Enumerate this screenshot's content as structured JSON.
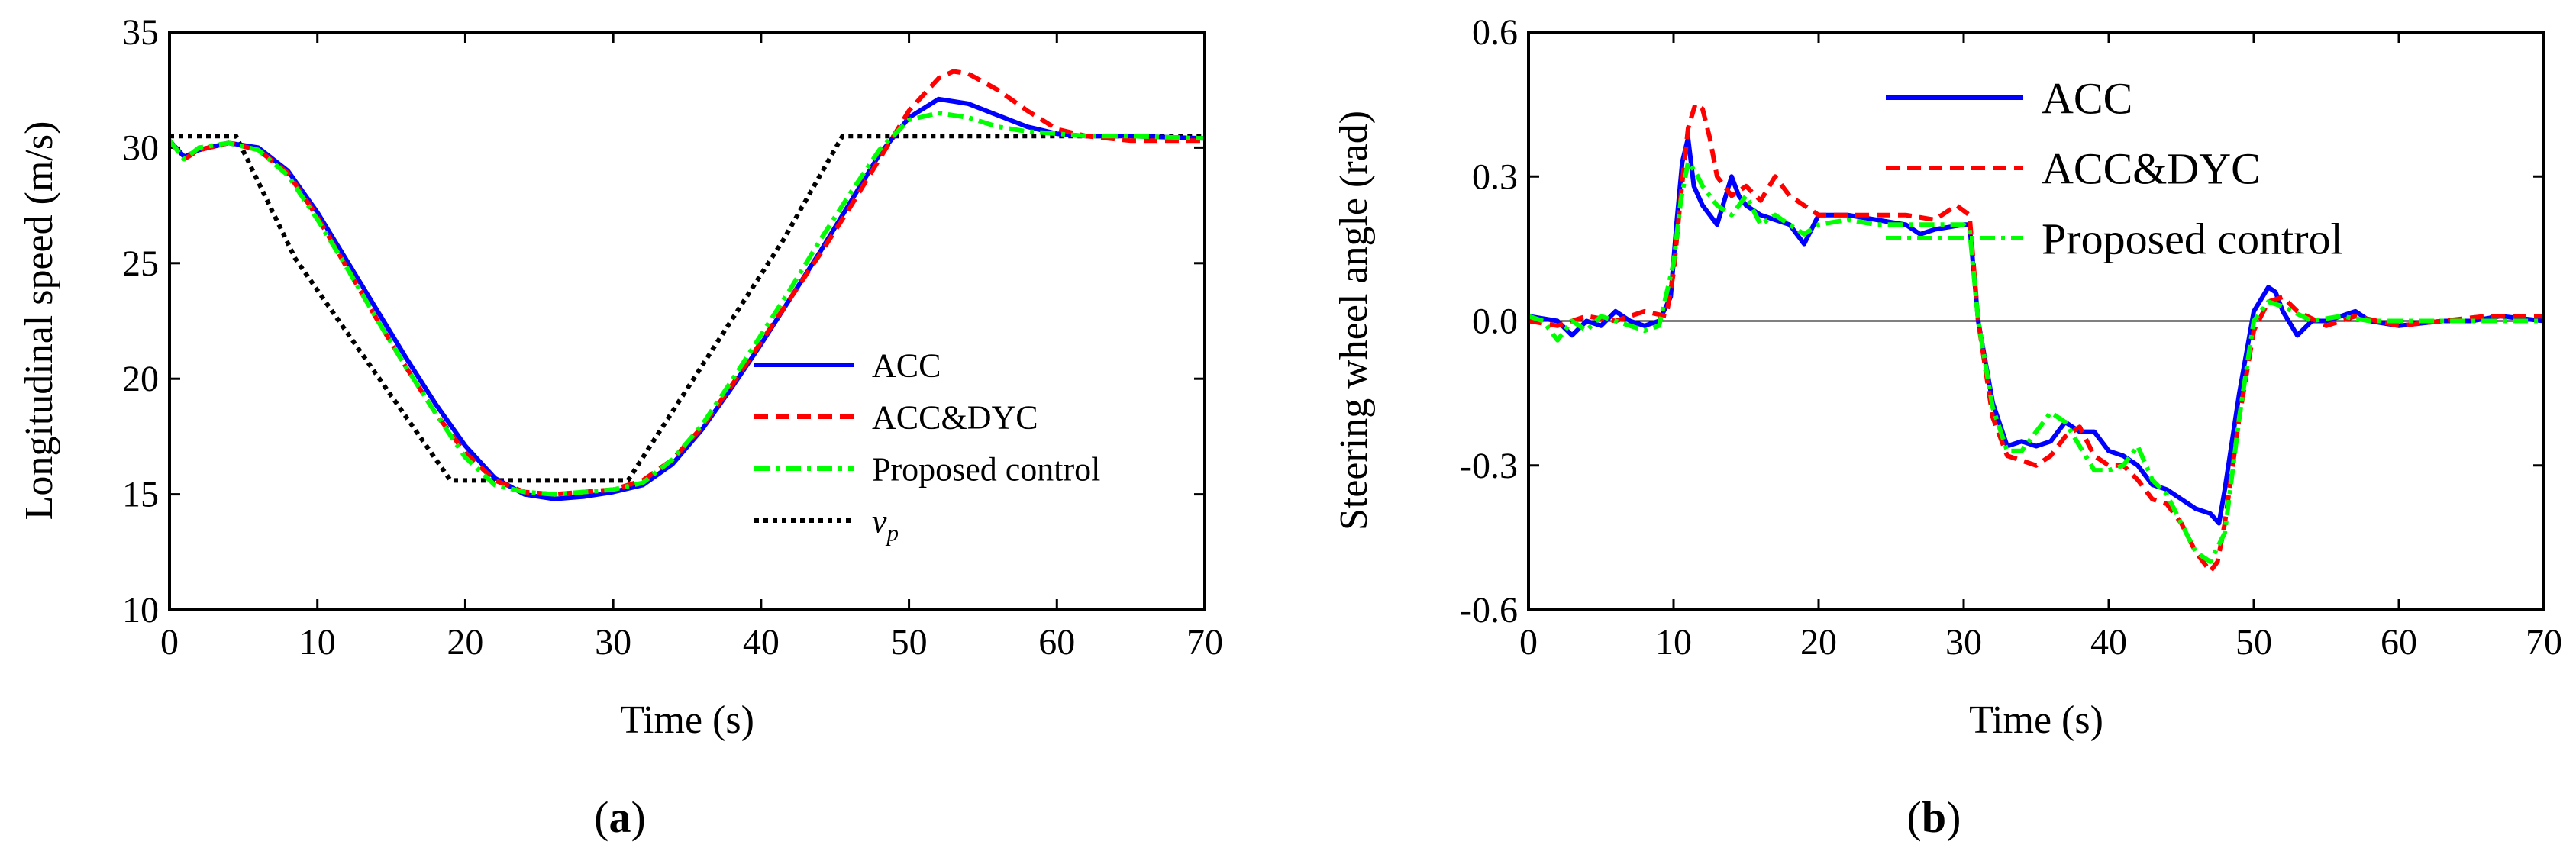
{
  "figure": {
    "panel_labels": [
      "(a)",
      "(b)"
    ]
  },
  "colors": {
    "ACC": "#0000ff",
    "ACC&DYC": "#ff0000",
    "Proposed control": "#00ff00",
    "v_p": "#000000"
  },
  "chart_data": [
    {
      "type": "line",
      "panel": "(a)",
      "xlabel": "Time (s)",
      "ylabel": "Longitudinal speed (m/s)",
      "xlim": [
        0,
        70
      ],
      "ylim": [
        10,
        35
      ],
      "xticks": [
        0,
        10,
        20,
        30,
        40,
        50,
        60,
        70
      ],
      "yticks": [
        10,
        15,
        20,
        25,
        30,
        35
      ],
      "xtick_labels": [
        "0",
        "10",
        "20",
        "30",
        "40",
        "50",
        "60",
        "70"
      ],
      "ytick_labels": [
        "10",
        "15",
        "20",
        "25",
        "30",
        "35"
      ],
      "legend_position": "lower-right",
      "series": [
        {
          "name": "ACC",
          "style": "solid",
          "x": [
            0,
            1,
            2,
            4,
            6,
            8,
            10,
            12,
            14,
            16,
            18,
            20,
            22,
            24,
            26,
            28,
            30,
            32,
            34,
            36,
            38,
            40,
            42,
            44,
            46,
            48,
            50,
            52,
            54,
            56,
            58,
            60,
            62,
            65,
            70
          ],
          "y": [
            30.3,
            29.6,
            29.9,
            30.2,
            30.0,
            29.0,
            27.2,
            25.1,
            23.0,
            20.9,
            18.9,
            17.1,
            15.7,
            15.0,
            14.8,
            14.9,
            15.1,
            15.4,
            16.3,
            17.8,
            19.6,
            21.5,
            23.5,
            25.5,
            27.6,
            29.7,
            31.3,
            32.1,
            31.9,
            31.4,
            30.9,
            30.6,
            30.5,
            30.5,
            30.4
          ]
        },
        {
          "name": "ACC&DYC",
          "style": "dashed",
          "x": [
            0,
            1,
            2,
            4,
            6,
            8,
            10,
            12,
            14,
            16,
            18,
            20,
            22,
            24,
            26,
            28,
            30,
            32,
            34,
            36,
            38,
            40,
            42,
            44,
            46,
            48,
            50,
            52,
            53,
            54,
            56,
            58,
            60,
            62,
            65,
            70
          ],
          "y": [
            30.3,
            29.5,
            29.9,
            30.2,
            29.9,
            28.9,
            27.0,
            24.8,
            22.6,
            20.5,
            18.5,
            16.8,
            15.6,
            15.1,
            15.0,
            15.1,
            15.2,
            15.6,
            16.5,
            17.9,
            19.7,
            21.6,
            23.5,
            25.4,
            27.4,
            29.5,
            31.6,
            33.0,
            33.3,
            33.2,
            32.5,
            31.6,
            30.8,
            30.5,
            30.3,
            30.3
          ]
        },
        {
          "name": "Proposed control",
          "style": "dashdot",
          "x": [
            0,
            1,
            2,
            4,
            6,
            8,
            10,
            12,
            14,
            16,
            18,
            20,
            22,
            24,
            26,
            28,
            30,
            32,
            34,
            36,
            38,
            40,
            42,
            44,
            46,
            48,
            50,
            52,
            54,
            56,
            58,
            60,
            62,
            65,
            70
          ],
          "y": [
            30.3,
            29.5,
            30.0,
            30.2,
            29.9,
            28.8,
            26.9,
            24.8,
            22.6,
            20.5,
            18.5,
            16.6,
            15.4,
            15.1,
            15.0,
            15.1,
            15.2,
            15.5,
            16.5,
            18.0,
            19.9,
            21.9,
            23.9,
            26.0,
            28.0,
            29.9,
            31.2,
            31.5,
            31.3,
            30.9,
            30.7,
            30.6,
            30.5,
            30.5,
            30.4
          ]
        },
        {
          "name": "v_p",
          "label_main": "v",
          "label_sub": "p",
          "style": "dotted",
          "x": [
            0,
            4.5,
            8.5,
            19,
            31,
            41.5,
            45.5,
            70
          ],
          "y": [
            30.5,
            30.5,
            25.2,
            15.6,
            15.6,
            26.0,
            30.5,
            30.5
          ]
        }
      ]
    },
    {
      "type": "line",
      "panel": "(b)",
      "xlabel": "Time (s)",
      "ylabel": "Steering wheel angle (rad)",
      "xlim": [
        0,
        70
      ],
      "ylim": [
        -0.6,
        0.6
      ],
      "xticks": [
        0,
        10,
        20,
        30,
        40,
        50,
        60,
        70
      ],
      "yticks": [
        -0.6,
        -0.3,
        0.0,
        0.3,
        0.6
      ],
      "xtick_labels": [
        "0",
        "10",
        "20",
        "30",
        "40",
        "50",
        "60",
        "70"
      ],
      "ytick_labels": [
        "-0.6",
        "-0.3",
        "0.0",
        "0.3",
        "0.6"
      ],
      "legend_position": "top-right",
      "series": [
        {
          "name": "ACC",
          "style": "solid",
          "x": [
            0,
            2,
            3,
            4,
            5,
            6,
            7,
            8,
            9,
            9.8,
            10.2,
            10.6,
            11.0,
            11.4,
            12,
            13,
            14,
            14.5,
            15,
            16,
            17,
            18,
            19,
            20,
            22,
            24,
            26,
            27,
            28,
            30,
            30.4,
            31,
            32,
            33,
            34,
            35,
            36,
            37,
            38,
            39,
            40,
            41,
            42,
            43,
            44,
            45,
            46,
            47,
            47.6,
            48,
            49,
            50,
            50.6,
            51,
            51.5,
            52,
            53,
            54,
            55,
            56,
            57,
            58,
            60,
            63,
            65,
            67,
            70
          ],
          "y": [
            0.01,
            0.0,
            -0.03,
            0.0,
            -0.01,
            0.02,
            0.0,
            -0.01,
            0.0,
            0.05,
            0.2,
            0.33,
            0.38,
            0.28,
            0.24,
            0.2,
            0.3,
            0.26,
            0.24,
            0.22,
            0.21,
            0.2,
            0.16,
            0.22,
            0.22,
            0.21,
            0.2,
            0.18,
            0.19,
            0.2,
            0.2,
            0.0,
            -0.17,
            -0.26,
            -0.25,
            -0.26,
            -0.25,
            -0.21,
            -0.23,
            -0.23,
            -0.27,
            -0.28,
            -0.3,
            -0.34,
            -0.35,
            -0.37,
            -0.39,
            -0.4,
            -0.42,
            -0.35,
            -0.15,
            0.02,
            0.05,
            0.07,
            0.06,
            0.02,
            -0.03,
            0.0,
            0.0,
            0.01,
            0.02,
            0.0,
            -0.01,
            0.0,
            0.0,
            0.01,
            0.0
          ]
        },
        {
          "name": "ACC&DYC",
          "style": "dashed",
          "x": [
            0,
            2,
            4,
            6,
            8,
            9.5,
            10,
            10.5,
            11,
            11.5,
            12,
            12.5,
            13,
            14,
            15,
            16,
            17,
            18,
            20,
            22,
            24,
            26,
            28,
            29.5,
            30.4,
            31,
            32,
            33,
            34,
            35,
            36,
            37,
            38,
            39,
            40,
            41,
            42,
            43,
            44,
            45,
            46,
            47,
            47.5,
            48,
            49,
            50,
            51,
            52,
            53,
            55,
            57,
            60,
            63,
            66,
            70
          ],
          "y": [
            0.0,
            -0.01,
            0.01,
            0.0,
            0.02,
            0.01,
            0.1,
            0.26,
            0.4,
            0.45,
            0.44,
            0.38,
            0.3,
            0.26,
            0.28,
            0.25,
            0.3,
            0.26,
            0.22,
            0.22,
            0.22,
            0.22,
            0.21,
            0.24,
            0.22,
            0.0,
            -0.2,
            -0.28,
            -0.29,
            -0.3,
            -0.28,
            -0.24,
            -0.22,
            -0.28,
            -0.3,
            -0.3,
            -0.33,
            -0.37,
            -0.38,
            -0.42,
            -0.48,
            -0.52,
            -0.5,
            -0.42,
            -0.2,
            -0.02,
            0.04,
            0.05,
            0.02,
            -0.01,
            0.01,
            -0.01,
            0.0,
            0.01,
            0.01
          ]
        },
        {
          "name": "Proposed control",
          "style": "dashdot",
          "x": [
            0,
            1,
            2,
            3,
            4,
            5,
            6,
            7,
            8,
            9,
            10,
            10.5,
            11,
            11.5,
            12,
            12.5,
            13,
            14,
            15,
            16,
            17,
            18,
            19,
            20,
            22,
            24,
            26,
            28,
            30,
            30.4,
            31,
            32,
            33,
            34,
            35,
            36,
            37,
            38,
            39,
            40,
            41,
            42,
            43,
            44,
            45,
            46,
            47,
            48,
            49,
            50,
            51,
            52,
            54,
            56,
            58,
            60,
            63,
            66,
            70
          ],
          "y": [
            0.01,
            0.0,
            -0.04,
            0.0,
            -0.02,
            0.01,
            0.0,
            -0.01,
            -0.02,
            -0.01,
            0.12,
            0.25,
            0.33,
            0.31,
            0.28,
            0.26,
            0.24,
            0.22,
            0.26,
            0.2,
            0.22,
            0.2,
            0.18,
            0.2,
            0.21,
            0.2,
            0.2,
            0.2,
            0.2,
            0.19,
            0.0,
            -0.18,
            -0.27,
            -0.27,
            -0.23,
            -0.19,
            -0.21,
            -0.26,
            -0.31,
            -0.31,
            -0.3,
            -0.26,
            -0.33,
            -0.36,
            -0.42,
            -0.48,
            -0.5,
            -0.44,
            -0.2,
            0.0,
            0.04,
            0.03,
            0.0,
            0.01,
            0.0,
            0.0,
            0.0,
            0.0,
            0.0
          ]
        }
      ]
    }
  ]
}
